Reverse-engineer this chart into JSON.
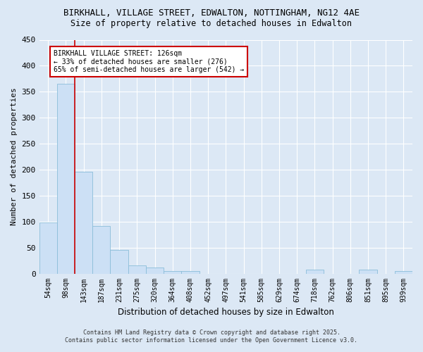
{
  "title_line1": "BIRKHALL, VILLAGE STREET, EDWALTON, NOTTINGHAM, NG12 4AE",
  "title_line2": "Size of property relative to detached houses in Edwalton",
  "xlabel": "Distribution of detached houses by size in Edwalton",
  "ylabel": "Number of detached properties",
  "categories": [
    "54sqm",
    "98sqm",
    "143sqm",
    "187sqm",
    "231sqm",
    "275sqm",
    "320sqm",
    "364sqm",
    "408sqm",
    "452sqm",
    "497sqm",
    "541sqm",
    "585sqm",
    "629sqm",
    "674sqm",
    "718sqm",
    "762sqm",
    "806sqm",
    "851sqm",
    "895sqm",
    "939sqm"
  ],
  "values": [
    99,
    365,
    196,
    92,
    46,
    16,
    12,
    5,
    5,
    0,
    0,
    0,
    0,
    0,
    0,
    8,
    0,
    0,
    8,
    0,
    5
  ],
  "bar_color": "#cce0f5",
  "bar_edge_color": "#8bbdd9",
  "vline_color": "#cc0000",
  "annotation_title": "BIRKHALL VILLAGE STREET: 126sqm",
  "annotation_line1": "← 33% of detached houses are smaller (276)",
  "annotation_line2": "65% of semi-detached houses are larger (542) →",
  "annotation_box_edgecolor": "#cc0000",
  "ylim": [
    0,
    450
  ],
  "yticks": [
    0,
    50,
    100,
    150,
    200,
    250,
    300,
    350,
    400,
    450
  ],
  "footnote_line1": "Contains HM Land Registry data © Crown copyright and database right 2025.",
  "footnote_line2": "Contains public sector information licensed under the Open Government Licence v3.0.",
  "background_color": "#dce8f5",
  "plot_bg_color": "#dce8f5",
  "grid_color": "#ffffff"
}
